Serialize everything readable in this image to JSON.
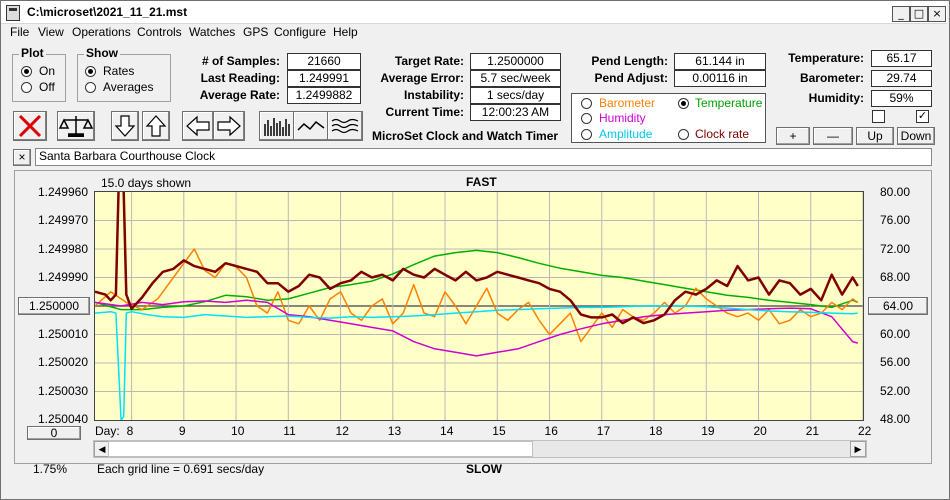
{
  "window": {
    "title": "C:\\microset\\2021_11_21.mst"
  },
  "menu": [
    "File",
    "View",
    "Operations",
    "Controls",
    "Watches",
    "GPS",
    "Configure",
    "Help"
  ],
  "plot_group": {
    "title": "Plot",
    "on": "On",
    "off": "Off",
    "selected": "On"
  },
  "show_group": {
    "title": "Show",
    "rates": "Rates",
    "averages": "Averages",
    "selected": "Rates"
  },
  "stats": {
    "samples_label": "# of Samples:",
    "samples": "21660",
    "last_label": "Last Reading:",
    "last": "1.249991",
    "avg_rate_label": "Average Rate:",
    "avg_rate": "1.2499882",
    "target_label": "Target Rate:",
    "target": "1.2500000",
    "avg_err_label": "Average Error:",
    "avg_err": "5.7 sec/week",
    "instab_label": "Instability:",
    "instab": "1 secs/day",
    "time_label": "Current Time:",
    "time": "12:00:23 AM",
    "pend_len_label": "Pend Length:",
    "pend_len": "61.144 in",
    "pend_adj_label": "Pend Adjust:",
    "pend_adj": "0.00116 in",
    "temp_label": "Temperature:",
    "temp": "65.17",
    "baro_label": "Barometer:",
    "baro": "29.74",
    "hum_label": "Humidity:",
    "hum": "59%"
  },
  "product_name": "MicroSet Clock and Watch Timer",
  "legend": {
    "barometer": "Barometer",
    "temperature": "Temperature",
    "humidity": "Humidity",
    "amplitude": "Amplitude",
    "clock_rate": "Clock rate",
    "selected": "Temperature"
  },
  "adjust_buttons": {
    "plus": "+",
    "minus": "—",
    "up": "Up",
    "down": "Down"
  },
  "description": {
    "close": "×",
    "text": "Santa Barbara Courthouse Clock"
  },
  "colors": {
    "barometer": "#ff8000",
    "temperature": "#00b000",
    "humidity": "#d000d0",
    "amplitude": "#00e0ff",
    "clock_rate": "#800000",
    "plot_bg": "#ffffc8"
  },
  "chart_data": {
    "type": "line",
    "top_label": "FAST",
    "bottom_label": "SLOW",
    "days_shown": "15.0 days shown",
    "grid_note": "Each grid line = 0.691 secs/day",
    "zoom": "1.75%",
    "x_prefix": "Day:",
    "x_ticks": [
      "8",
      "9",
      "10",
      "11",
      "12",
      "13",
      "14",
      "15",
      "16",
      "17",
      "18",
      "19",
      "20",
      "21",
      "22"
    ],
    "left_ticks": [
      "1.249960",
      "1.249970",
      "1.249980",
      "1.249990",
      "1.250000",
      "1.250010",
      "1.250020",
      "1.250030",
      "1.250040"
    ],
    "right_ticks": [
      "80.00",
      "76.00",
      "72.00",
      "68.00",
      "64.00",
      "60.00",
      "56.00",
      "52.00",
      "48.00"
    ],
    "center_left_button": "1.250000",
    "center_right_button": "64.00",
    "left_button": "0",
    "xlim": [
      7.3,
      22.0
    ],
    "rate_ylim": [
      1.24996,
      1.25004
    ],
    "env_ylim": [
      48,
      80
    ],
    "series": [
      {
        "name": "Clock rate",
        "axis": "rate",
        "color": "#800000",
        "width": 2.5,
        "x": [
          7.3,
          7.5,
          7.6,
          7.7,
          7.75,
          7.8,
          7.85,
          7.9,
          8.0,
          8.2,
          8.4,
          8.6,
          8.8,
          9.0,
          9.2,
          9.4,
          9.6,
          9.8,
          10.0,
          10.2,
          10.4,
          10.6,
          10.8,
          11.0,
          11.2,
          11.4,
          11.6,
          11.8,
          12.0,
          12.2,
          12.4,
          12.6,
          12.8,
          13.0,
          13.2,
          13.4,
          13.6,
          13.8,
          14.0,
          14.2,
          14.4,
          14.6,
          14.8,
          15.0,
          15.2,
          15.4,
          15.6,
          15.8,
          16.0,
          16.2,
          16.4,
          16.6,
          16.8,
          17.0,
          17.2,
          17.4,
          17.6,
          17.8,
          18.0,
          18.2,
          18.4,
          18.6,
          18.8,
          19.0,
          19.2,
          19.4,
          19.6,
          19.8,
          20.0,
          20.2,
          20.4,
          20.6,
          20.8,
          21.0,
          21.2,
          21.4,
          21.6,
          21.8,
          21.9
        ],
        "y": [
          1.249995,
          1.249996,
          1.249998,
          1.249996,
          1.24996,
          1.249958,
          1.24996,
          1.249996,
          1.250001,
          1.249997,
          1.249992,
          1.249988,
          1.249987,
          1.249984,
          1.249986,
          1.249987,
          1.249988,
          1.249985,
          1.249986,
          1.249987,
          1.249988,
          1.249992,
          1.249992,
          1.249995,
          1.249993,
          1.249989,
          1.24999,
          1.249994,
          1.249992,
          1.249991,
          1.249988,
          1.24999,
          1.249989,
          1.249991,
          1.249987,
          1.249989,
          1.24999,
          1.249987,
          1.249989,
          1.249991,
          1.249988,
          1.249991,
          1.24999,
          1.249988,
          1.249989,
          1.24999,
          1.249991,
          1.249992,
          1.249994,
          1.249995,
          1.249998,
          1.250003,
          1.250004,
          1.250004,
          1.250003,
          1.250006,
          1.250004,
          1.250006,
          1.250005,
          1.250003,
          1.249998,
          1.249995,
          1.249996,
          1.249994,
          1.249991,
          1.249993,
          1.249986,
          1.249991,
          1.24999,
          1.249996,
          1.249991,
          1.249992,
          1.249996,
          1.249994,
          1.249998,
          1.249989,
          1.249996,
          1.24999,
          1.249993
        ]
      },
      {
        "name": "Temperature",
        "axis": "env",
        "color": "#00b000",
        "width": 1.5,
        "x": [
          7.3,
          7.8,
          8.2,
          8.6,
          9.0,
          9.4,
          9.8,
          10.2,
          10.6,
          11.0,
          11.4,
          11.8,
          12.2,
          12.6,
          13.0,
          13.4,
          13.8,
          14.2,
          14.6,
          15.0,
          15.4,
          15.8,
          16.2,
          16.6,
          17.0,
          17.4,
          17.8,
          18.2,
          18.6,
          19.0,
          19.4,
          19.8,
          20.2,
          20.6,
          21.0,
          21.4,
          21.8,
          21.9
        ],
        "y": [
          64.5,
          63.5,
          63.5,
          63.8,
          64.0,
          64.6,
          65.5,
          65.3,
          64.8,
          65.0,
          65.8,
          66.6,
          67.0,
          67.5,
          68.5,
          69.8,
          71.0,
          71.5,
          71.8,
          71.5,
          70.8,
          70.0,
          69.3,
          68.8,
          68.3,
          68.0,
          67.5,
          67.0,
          66.5,
          66.0,
          65.5,
          65.2,
          64.8,
          64.5,
          64.2,
          63.8,
          64.8,
          64.5
        ]
      },
      {
        "name": "Barometer",
        "axis": "env",
        "color": "#ff8000",
        "width": 1.5,
        "x": [
          7.3,
          7.6,
          7.9,
          8.2,
          8.5,
          8.8,
          9.0,
          9.2,
          9.4,
          9.6,
          9.8,
          10.0,
          10.2,
          10.4,
          10.6,
          10.8,
          11.0,
          11.2,
          11.4,
          11.6,
          11.8,
          12.0,
          12.2,
          12.4,
          12.6,
          12.8,
          13.0,
          13.2,
          13.4,
          13.6,
          13.8,
          14.0,
          14.2,
          14.4,
          14.6,
          14.8,
          15.0,
          15.2,
          15.4,
          15.6,
          15.8,
          16.0,
          16.2,
          16.4,
          16.6,
          16.8,
          17.0,
          17.2,
          17.4,
          17.6,
          17.8,
          18.0,
          18.2,
          18.4,
          18.6,
          18.8,
          19.0,
          19.2,
          19.4,
          19.6,
          19.8,
          20.0,
          20.2,
          20.4,
          20.6,
          20.8,
          21.0,
          21.2,
          21.4,
          21.6,
          21.8,
          21.9
        ],
        "y": [
          64.0,
          66.0,
          64.5,
          63.5,
          65.0,
          68.0,
          70.0,
          72.0,
          69.0,
          68.0,
          70.0,
          69.5,
          68.0,
          64.0,
          63.0,
          66.0,
          62.0,
          61.5,
          64.0,
          62.0,
          65.0,
          66.0,
          63.0,
          62.0,
          64.0,
          65.0,
          61.5,
          63.0,
          67.0,
          63.0,
          62.5,
          66.0,
          64.0,
          61.5,
          64.0,
          66.5,
          63.0,
          62.0,
          63.5,
          64.5,
          62.0,
          60.0,
          61.5,
          63.0,
          59.0,
          61.0,
          63.0,
          61.0,
          63.5,
          62.5,
          62.0,
          63.0,
          64.5,
          63.0,
          64.0,
          66.5,
          65.0,
          64.0,
          63.0,
          62.5,
          63.0,
          62.0,
          63.5,
          61.5,
          62.0,
          63.5,
          62.5,
          63.0,
          64.5,
          63.5,
          65.0,
          64.5
        ]
      },
      {
        "name": "Humidity",
        "axis": "env",
        "color": "#d000d0",
        "width": 1.5,
        "x": [
          7.3,
          7.8,
          8.2,
          8.6,
          9.0,
          9.4,
          9.8,
          10.2,
          10.6,
          11.0,
          11.4,
          11.8,
          12.2,
          12.6,
          13.0,
          13.4,
          13.8,
          14.2,
          14.6,
          15.0,
          15.4,
          15.8,
          16.2,
          16.6,
          17.0,
          17.4,
          17.8,
          18.2,
          18.6,
          19.0,
          19.4,
          19.8,
          20.2,
          20.6,
          21.0,
          21.4,
          21.8,
          21.9
        ],
        "y": [
          64.5,
          64.0,
          64.5,
          64.2,
          64.6,
          64.7,
          64.5,
          64.8,
          64.5,
          62.8,
          62.5,
          62.0,
          61.5,
          61.0,
          60.5,
          59.0,
          58.0,
          57.5,
          57.0,
          57.5,
          58.0,
          59.0,
          60.0,
          60.8,
          61.5,
          62.0,
          62.5,
          62.8,
          63.0,
          63.2,
          63.4,
          63.5,
          63.6,
          63.7,
          63.6,
          62.5,
          59.0,
          58.8
        ]
      },
      {
        "name": "Amplitude",
        "axis": "env",
        "color": "#00e0ff",
        "width": 1.5,
        "x": [
          7.3,
          7.6,
          7.7,
          7.8,
          7.85,
          7.9,
          8.0,
          8.3,
          8.6,
          9.0,
          9.4,
          9.8,
          10.2,
          10.6,
          11.0,
          11.4,
          11.8,
          12.2,
          12.6,
          13.0,
          13.4,
          13.8,
          14.2,
          14.6,
          15.0,
          15.4,
          15.8,
          16.2,
          16.6,
          17.0,
          17.4,
          17.8,
          18.2,
          18.6,
          19.0,
          19.4,
          19.8,
          20.2,
          20.6,
          21.0,
          21.4,
          21.8,
          21.9
        ],
        "y": [
          63.0,
          63.2,
          63.0,
          48.0,
          48.5,
          63.0,
          63.2,
          62.8,
          62.5,
          62.4,
          62.8,
          62.6,
          62.4,
          62.5,
          62.6,
          62.4,
          62.3,
          62.5,
          62.4,
          62.5,
          62.6,
          62.8,
          63.0,
          63.2,
          63.4,
          63.5,
          63.6,
          63.7,
          63.8,
          63.8,
          63.9,
          64.0,
          64.0,
          64.0,
          63.9,
          63.7,
          63.5,
          63.3,
          63.2,
          63.1,
          63.0,
          62.9,
          63.0
        ]
      }
    ]
  }
}
